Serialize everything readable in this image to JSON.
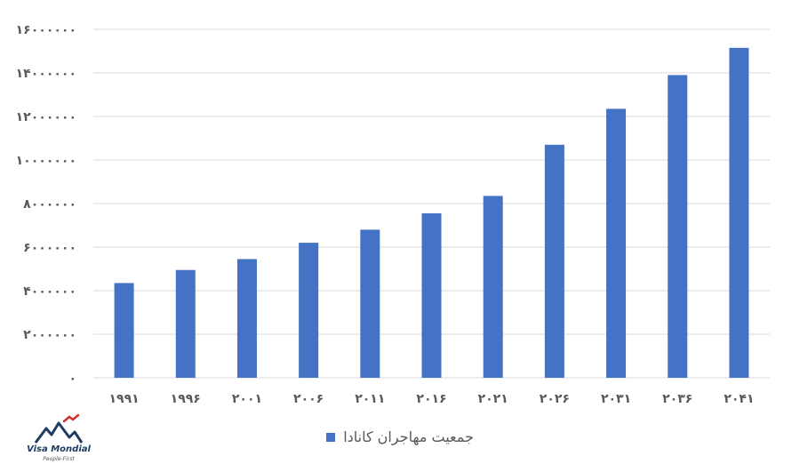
{
  "chart_data": {
    "type": "bar",
    "categories": [
      "۱۹۹۱",
      "۱۹۹۶",
      "۲۰۰۱",
      "۲۰۰۶",
      "۲۰۱۱",
      "۲۰۱۶",
      "۲۰۲۱",
      "۲۰۲۶",
      "۲۰۳۱",
      "۲۰۳۶",
      "۲۰۴۱"
    ],
    "series": [
      {
        "name": "جمعیت مهاجران کانادا",
        "values": [
          4350000,
          4950000,
          5450000,
          6200000,
          6800000,
          7550000,
          8350000,
          10700000,
          12350000,
          13900000,
          15150000
        ]
      }
    ],
    "yticks": [
      "۰",
      "۲۰۰۰۰۰۰",
      "۴۰۰۰۰۰۰",
      "۶۰۰۰۰۰۰",
      "۸۰۰۰۰۰۰",
      "۱۰۰۰۰۰۰۰",
      "۱۲۰۰۰۰۰۰",
      "۱۴۰۰۰۰۰۰",
      "۱۶۰۰۰۰۰۰"
    ],
    "ylim": [
      0,
      16000000
    ],
    "grid": true,
    "legend": "bottom",
    "bar_color": "#4472c4",
    "grid_color": "#d9d9d9"
  },
  "logo": {
    "name": "Visa Mondial",
    "tagline": "People-First",
    "color": "#1f3b63",
    "accent": "#d32f2f"
  }
}
